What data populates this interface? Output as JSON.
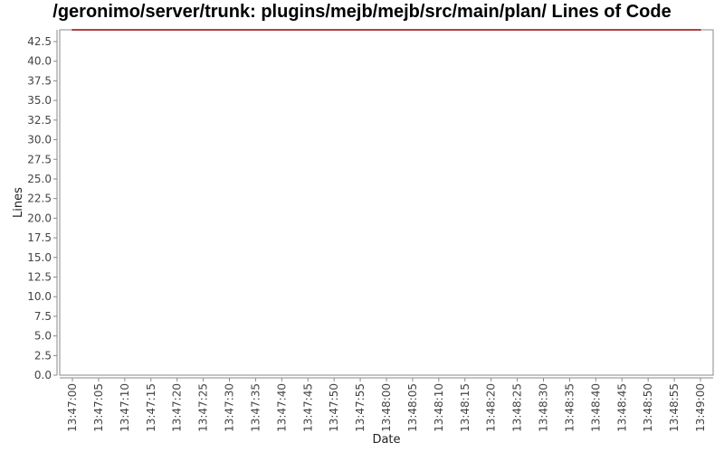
{
  "chart_data": {
    "type": "line",
    "title": "/geronimo/server/trunk: plugins/mejb/mejb/src/main/plan/ Lines of Code",
    "xlabel": "Date",
    "ylabel": "Lines",
    "ylim": [
      0,
      44
    ],
    "yticks": [
      "0.0",
      "2.5",
      "5.0",
      "7.5",
      "10.0",
      "12.5",
      "15.0",
      "17.5",
      "20.0",
      "22.5",
      "25.0",
      "27.5",
      "30.0",
      "32.5",
      "35.0",
      "37.5",
      "40.0",
      "42.5"
    ],
    "xticks": [
      "13:47:00",
      "13:47:05",
      "13:47:10",
      "13:47:15",
      "13:47:20",
      "13:47:25",
      "13:47:30",
      "13:47:35",
      "13:47:40",
      "13:47:45",
      "13:47:50",
      "13:47:55",
      "13:48:00",
      "13:48:05",
      "13:48:10",
      "13:48:15",
      "13:48:20",
      "13:48:25",
      "13:48:30",
      "13:48:35",
      "13:48:40",
      "13:48:45",
      "13:48:50",
      "13:48:55",
      "13:49:00"
    ],
    "grid": false,
    "series": [
      {
        "color": "#990000",
        "x": [
          "13:47:00",
          "13:49:00"
        ],
        "values": [
          44,
          44
        ]
      }
    ]
  }
}
